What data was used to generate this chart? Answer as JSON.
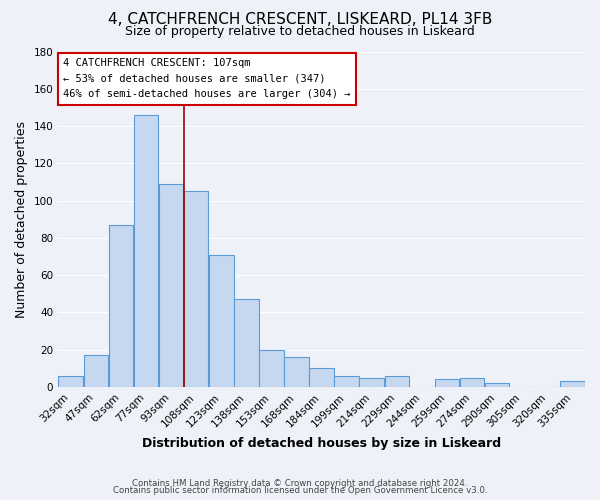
{
  "title": "4, CATCHFRENCH CRESCENT, LISKEARD, PL14 3FB",
  "subtitle": "Size of property relative to detached houses in Liskeard",
  "xlabel": "Distribution of detached houses by size in Liskeard",
  "ylabel": "Number of detached properties",
  "bar_labels": [
    "32sqm",
    "47sqm",
    "62sqm",
    "77sqm",
    "93sqm",
    "108sqm",
    "123sqm",
    "138sqm",
    "153sqm",
    "168sqm",
    "184sqm",
    "199sqm",
    "214sqm",
    "229sqm",
    "244sqm",
    "259sqm",
    "274sqm",
    "290sqm",
    "305sqm",
    "320sqm",
    "335sqm"
  ],
  "bar_values": [
    6,
    17,
    87,
    146,
    109,
    105,
    71,
    47,
    20,
    16,
    10,
    6,
    5,
    6,
    0,
    4,
    5,
    2,
    0,
    0,
    3
  ],
  "bar_color": "#c5d8f0",
  "bar_edge_color": "#5b9bd5",
  "highlight_line_color": "#aa0000",
  "highlight_line_index": 4.5,
  "ylim": [
    0,
    180
  ],
  "yticks": [
    0,
    20,
    40,
    60,
    80,
    100,
    120,
    140,
    160,
    180
  ],
  "annotation_title": "4 CATCHFRENCH CRESCENT: 107sqm",
  "annotation_line1": "← 53% of detached houses are smaller (347)",
  "annotation_line2": "46% of semi-detached houses are larger (304) →",
  "annotation_box_color": "#ffffff",
  "annotation_box_edge": "#cc0000",
  "footer_line1": "Contains HM Land Registry data © Crown copyright and database right 2024.",
  "footer_line2": "Contains public sector information licensed under the Open Government Licence v3.0.",
  "background_color": "#eef2f8",
  "grid_color": "#ffffff",
  "title_fontsize": 11,
  "subtitle_fontsize": 9,
  "axis_label_fontsize": 9,
  "tick_fontsize": 7.5
}
